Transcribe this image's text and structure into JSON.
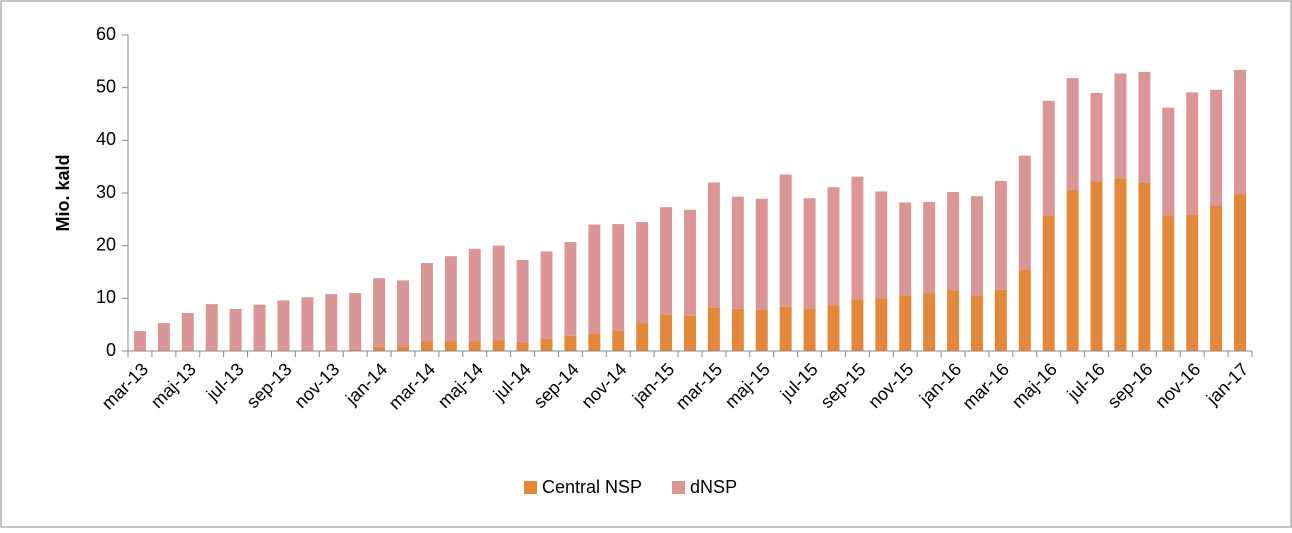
{
  "chart_data": {
    "type": "stacked-bar",
    "y_label": "Mio. kald",
    "categories": [
      "mar-13",
      null,
      "maj-13",
      null,
      "jul-13",
      null,
      "sep-13",
      null,
      "nov-13",
      null,
      "jan-14",
      null,
      "mar-14",
      null,
      "maj-14",
      null,
      "jul-14",
      null,
      "sep-14",
      null,
      "nov-14",
      null,
      "jan-15",
      null,
      "mar-15",
      null,
      "maj-15",
      null,
      "jul-15",
      null,
      "sep-15",
      null,
      "nov-15",
      null,
      "jan-16",
      null,
      "mar-16",
      null,
      "maj-16",
      null,
      "jul-16",
      null,
      "sep-16",
      null,
      "nov-16",
      null,
      "jan-17"
    ],
    "series": [
      {
        "name": "Central NSP",
        "color": "#e3873a",
        "values": [
          0,
          0,
          0,
          0,
          0,
          0,
          0,
          0,
          0.1,
          0.2,
          0.8,
          0.9,
          1.8,
          1.8,
          1.8,
          2.0,
          1.6,
          2.3,
          2.9,
          3.3,
          3.8,
          5.3,
          6.9,
          6.7,
          8.3,
          8.0,
          7.8,
          8.4,
          8.1,
          8.7,
          9.8,
          10.0,
          10.6,
          11.0,
          11.5,
          10.6,
          11.6,
          15.5,
          25.7,
          30.6,
          32.2,
          32.8,
          31.9,
          25.7,
          25.9,
          27.6,
          29.8
        ]
      },
      {
        "name": "dNSP",
        "color": "#d99694",
        "values": [
          3.8,
          5.3,
          7.2,
          8.9,
          8.0,
          8.8,
          9.6,
          10.2,
          10.7,
          10.8,
          13.0,
          12.5,
          14.9,
          16.2,
          17.6,
          18.0,
          15.7,
          16.6,
          17.8,
          20.7,
          20.3,
          19.2,
          20.4,
          20.1,
          23.7,
          21.3,
          21.1,
          25.1,
          20.9,
          22.4,
          23.3,
          20.3,
          17.6,
          17.3,
          18.7,
          18.8,
          20.7,
          21.6,
          21.8,
          21.2,
          16.8,
          19.9,
          21.1,
          20.5,
          23.2,
          22.0,
          23.6
        ]
      }
    ],
    "ylim": [
      0,
      60
    ],
    "yticks": [
      0,
      10,
      20,
      30,
      40,
      50,
      60
    ],
    "grid": false,
    "legend": "bottom"
  }
}
